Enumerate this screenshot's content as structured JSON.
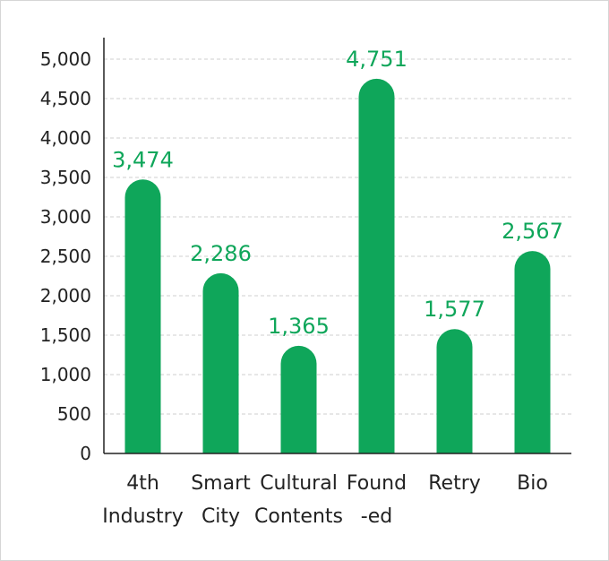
{
  "chart_data": {
    "type": "bar",
    "categories": [
      [
        "4th",
        "Industry"
      ],
      [
        "Smart",
        "City"
      ],
      [
        "Cultural",
        "Contents"
      ],
      [
        "Found",
        "-ed"
      ],
      [
        "Retry"
      ],
      [
        "Bio"
      ]
    ],
    "values": [
      3474,
      2286,
      1365,
      4751,
      1577,
      2567
    ],
    "value_labels": [
      "3,474",
      "2,286",
      "1,365",
      "4,751",
      "1,577",
      "2,567"
    ],
    "yticks": [
      0,
      500,
      1000,
      1500,
      2000,
      2500,
      3000,
      3500,
      4000,
      4500,
      5000
    ],
    "ytick_labels": [
      "0",
      "500",
      "1,000",
      "1,500",
      "2,000",
      "2,500",
      "3,000",
      "3,500",
      "4,000",
      "4,500",
      "5,000"
    ],
    "ylim": [
      0,
      5000
    ],
    "grid": true,
    "bar_color": "#0fa65a",
    "label_color": "#0fa65a",
    "title": "",
    "xlabel": "",
    "ylabel": ""
  }
}
